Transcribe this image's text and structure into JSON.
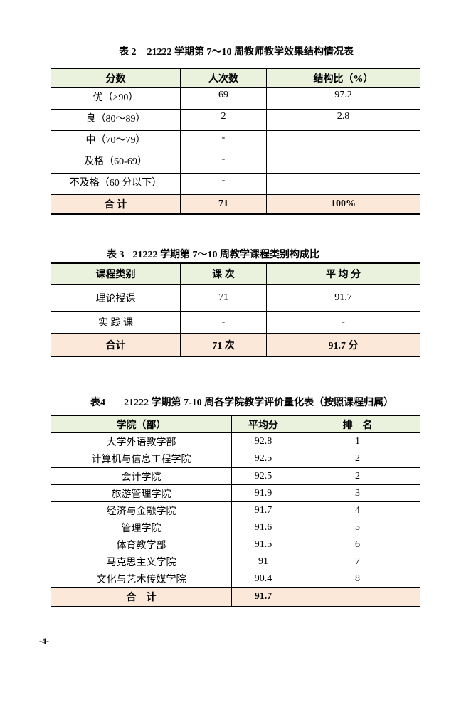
{
  "page": {
    "page_number": "-4-"
  },
  "colors": {
    "header_bg": "#EAF1DD",
    "total_bg": "#FBE8D9",
    "border": "#000000",
    "text": "#000000"
  },
  "tables": [
    {
      "title_label": "表 2",
      "title_text": "21222 学期第 7～10 周教师教学效果结构情况表",
      "headers": [
        "分数",
        "人次数",
        "结构比（%）"
      ],
      "rows": [
        [
          "优（≥90）",
          "69",
          "97.2"
        ],
        [
          "良（80～89）",
          "2",
          "2.8"
        ],
        [
          "中（70～79）",
          "-",
          ""
        ],
        [
          "及格（60-69）",
          "-",
          ""
        ],
        [
          "不及格（60 分以下）",
          "-",
          ""
        ]
      ],
      "total": [
        "合 计",
        "71",
        "100%"
      ]
    },
    {
      "title_label": "表 3",
      "title_text": "21222 学期第 7～10 周教学课程类别构成比",
      "headers": [
        "课程类别",
        "课 次",
        "平 均 分"
      ],
      "rows": [
        [
          "理论授课",
          "71",
          "91.7"
        ],
        [
          "实 践 课",
          "-",
          "-"
        ]
      ],
      "total": [
        "合计",
        "71 次",
        "91.7 分"
      ]
    },
    {
      "title_label": "表4",
      "title_text": "21222 学期第 7-10 周各学院教学评价量化表（按照课程归属）",
      "headers": [
        "学院（部）",
        "平均分",
        "排　名"
      ],
      "rows": [
        [
          "大学外语教学部",
          "92.8",
          "1"
        ],
        [
          "计算机与信息工程学院",
          "92.5",
          "2"
        ],
        [
          "会计学院",
          "92.5",
          "2"
        ],
        [
          "旅游管理学院",
          "91.9",
          "3"
        ],
        [
          "经济与金融学院",
          "91.7",
          "4"
        ],
        [
          "管理学院",
          "91.6",
          "5"
        ],
        [
          "体育教学部",
          "91.5",
          "6"
        ],
        [
          "马克思主义学院",
          "91",
          "7"
        ],
        [
          "文化与艺术传媒学院",
          "90.4",
          "8"
        ]
      ],
      "total": [
        "合　计",
        "91.7",
        ""
      ]
    }
  ]
}
